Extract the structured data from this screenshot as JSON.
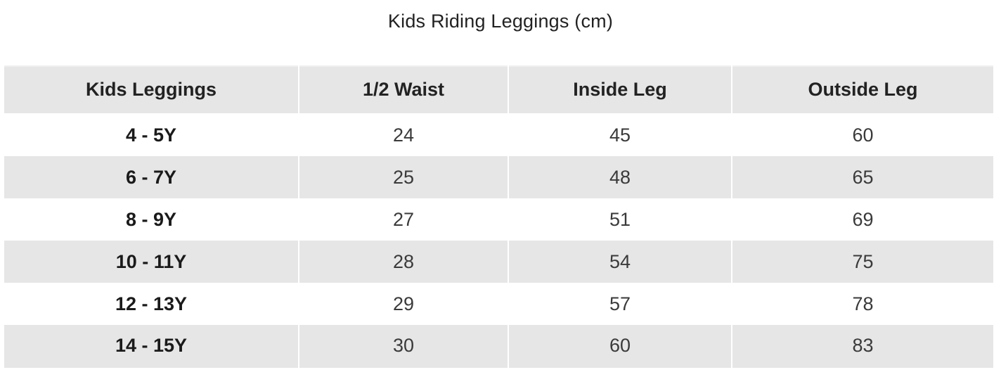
{
  "title": "Kids Riding Leggings (cm)",
  "table": {
    "headers": [
      "Kids Leggings",
      "1/2 Waist",
      "Inside Leg",
      "Outside Leg"
    ],
    "rows": [
      {
        "size": "4 - 5Y",
        "waist": "24",
        "inside_leg": "45",
        "outside_leg": "60"
      },
      {
        "size": "6 - 7Y",
        "waist": "25",
        "inside_leg": "48",
        "outside_leg": "65"
      },
      {
        "size": "8 - 9Y",
        "waist": "27",
        "inside_leg": "51",
        "outside_leg": "69"
      },
      {
        "size": "10 - 11Y",
        "waist": "28",
        "inside_leg": "54",
        "outside_leg": "75"
      },
      {
        "size": "12 - 13Y",
        "waist": "29",
        "inside_leg": "57",
        "outside_leg": "78"
      },
      {
        "size": "14 - 15Y",
        "waist": "30",
        "inside_leg": "60",
        "outside_leg": "83"
      }
    ]
  },
  "colors": {
    "header_bg": "#e6e6e6",
    "stripe_bg": "#e6e6e6",
    "text": "#1f1f1f"
  }
}
